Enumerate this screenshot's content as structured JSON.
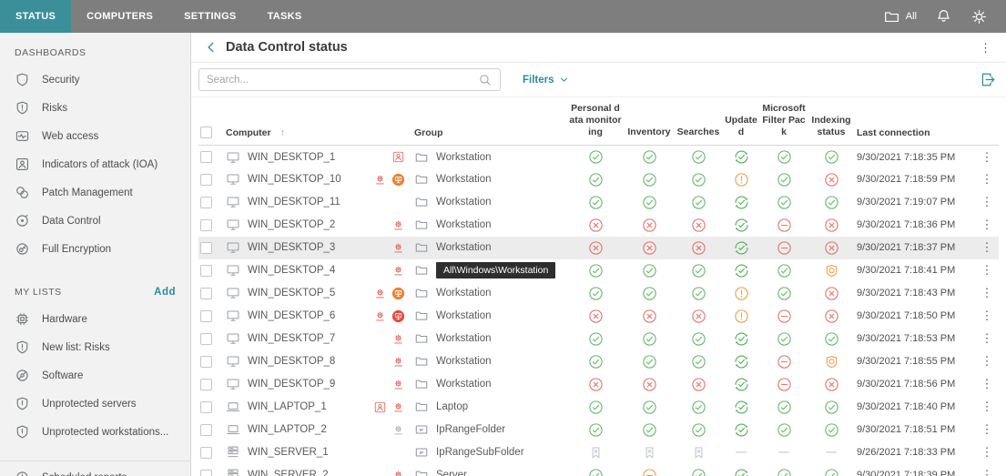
{
  "topbar": {
    "tabs": [
      {
        "label": "STATUS",
        "active": true
      },
      {
        "label": "COMPUTERS",
        "active": false
      },
      {
        "label": "SETTINGS",
        "active": false
      },
      {
        "label": "TASKS",
        "active": false
      }
    ],
    "scope_label": "All",
    "icons": [
      "folder-icon",
      "bell-icon",
      "gear-icon"
    ]
  },
  "sidebar": {
    "sections": [
      {
        "title": "DASHBOARDS",
        "items": [
          {
            "icon": "shield",
            "label": "Security"
          },
          {
            "icon": "shield-exclamation",
            "label": "Risks"
          },
          {
            "icon": "web-access",
            "label": "Web access"
          },
          {
            "icon": "person-square",
            "label": "Indicators of attack (IOA)"
          },
          {
            "icon": "knot",
            "label": "Patch Management"
          },
          {
            "icon": "orbit",
            "label": "Data Control"
          },
          {
            "icon": "encryption",
            "label": "Full Encryption"
          }
        ]
      },
      {
        "title": "MY LISTS",
        "action_label": "Add",
        "items": [
          {
            "icon": "chip",
            "label": "Hardware"
          },
          {
            "icon": "shield-exclamation",
            "label": "New list: Risks"
          },
          {
            "icon": "disc",
            "label": "Software"
          },
          {
            "icon": "shield-bar",
            "label": "Unprotected servers"
          },
          {
            "icon": "shield-bar",
            "label": "Unprotected workstations..."
          }
        ]
      },
      {
        "title": "",
        "divider": true,
        "items": [
          {
            "icon": "clock",
            "label": "Scheduled reports"
          }
        ]
      }
    ]
  },
  "main": {
    "title": "Data Control status",
    "search_placeholder": "Search...",
    "filters_label": "Filters",
    "table": {
      "columns": [
        "Computer",
        "Group",
        "Personal data monitoring",
        "Inventory",
        "Searches",
        "Updated",
        "Microsoft Filter Pack",
        "Indexing status",
        "Last connection"
      ],
      "sorted_column": "Computer",
      "sort_direction": "asc",
      "rows": [
        {
          "name": "WIN_DESKTOP_1",
          "device": "desktop",
          "badges": [
            "ioa"
          ],
          "group": "Workstation",
          "group_icon": "folder",
          "statuses": [
            "ok",
            "ok",
            "ok",
            "sync",
            "ok",
            "ok"
          ],
          "last_connection": "9/30/2021 7:18:35 PM"
        },
        {
          "name": "WIN_DESKTOP_10",
          "device": "desktop",
          "badges": [
            "gear",
            "isolated"
          ],
          "group": "Workstation",
          "group_icon": "folder",
          "statuses": [
            "ok",
            "ok",
            "ok",
            "warn",
            "ok",
            "error"
          ],
          "last_connection": "9/30/2021 7:18:59 PM"
        },
        {
          "name": "WIN_DESKTOP_11",
          "device": "desktop",
          "badges": [],
          "group": "Workstation",
          "group_icon": "folder",
          "statuses": [
            "ok",
            "ok",
            "ok",
            "sync",
            "ok",
            "ok"
          ],
          "last_connection": "9/30/2021 7:19:07 PM"
        },
        {
          "name": "WIN_DESKTOP_2",
          "device": "desktop",
          "badges": [
            "gear"
          ],
          "group": "Workstation",
          "group_icon": "folder",
          "statuses": [
            "error",
            "error",
            "error",
            "sync",
            "minus-red",
            "error"
          ],
          "last_connection": "9/30/2021 7:18:36 PM"
        },
        {
          "name": "WIN_DESKTOP_3",
          "device": "desktop",
          "badges": [
            "gear"
          ],
          "group": "Workstation",
          "group_icon": "folder",
          "highlighted": true,
          "statuses": [
            "error",
            "error",
            "error",
            "sync",
            "minus-red",
            "error"
          ],
          "last_connection": "9/30/2021 7:18:37 PM"
        },
        {
          "name": "WIN_DESKTOP_4",
          "device": "desktop",
          "badges": [
            "gear"
          ],
          "group": "Workstation",
          "group_icon": "folder",
          "tooltip": "All\\Windows\\Workstation",
          "statuses": [
            "ok",
            "ok",
            "ok",
            "sync",
            "ok",
            "indexing"
          ],
          "last_connection": "9/30/2021 7:18:41 PM"
        },
        {
          "name": "WIN_DESKTOP_5",
          "device": "desktop",
          "badges": [
            "gear",
            "isolated"
          ],
          "group": "Workstation",
          "group_icon": "folder",
          "statuses": [
            "ok",
            "ok",
            "ok",
            "warn",
            "ok",
            "error"
          ],
          "last_connection": "9/30/2021 7:18:43 PM"
        },
        {
          "name": "WIN_DESKTOP_6",
          "device": "desktop",
          "badges": [
            "gear",
            "isolating"
          ],
          "group": "Workstation",
          "group_icon": "folder",
          "statuses": [
            "error",
            "error",
            "error",
            "warn",
            "minus-red",
            "error"
          ],
          "last_connection": "9/30/2021 7:18:50 PM"
        },
        {
          "name": "WIN_DESKTOP_7",
          "device": "desktop",
          "badges": [
            "gear"
          ],
          "group": "Workstation",
          "group_icon": "folder",
          "statuses": [
            "ok",
            "ok",
            "ok",
            "sync",
            "ok",
            "ok"
          ],
          "last_connection": "9/30/2021 7:18:53 PM"
        },
        {
          "name": "WIN_DESKTOP_8",
          "device": "desktop",
          "badges": [
            "gear"
          ],
          "group": "Workstation",
          "group_icon": "folder",
          "statuses": [
            "ok",
            "ok",
            "ok",
            "sync",
            "minus-red",
            "indexing"
          ],
          "last_connection": "9/30/2021 7:18:55 PM"
        },
        {
          "name": "WIN_DESKTOP_9",
          "device": "desktop",
          "badges": [
            "gear"
          ],
          "group": "Workstation",
          "group_icon": "folder",
          "statuses": [
            "error",
            "error",
            "error",
            "sync",
            "minus-red",
            "error"
          ],
          "last_connection": "9/30/2021 7:18:56 PM"
        },
        {
          "name": "WIN_LAPTOP_1",
          "device": "laptop",
          "badges": [
            "ioa",
            "gear"
          ],
          "group": "Laptop",
          "group_icon": "folder",
          "statuses": [
            "ok",
            "ok",
            "ok",
            "sync",
            "ok",
            "ok"
          ],
          "last_connection": "9/30/2021 7:18:40 PM"
        },
        {
          "name": "WIN_LAPTOP_2",
          "device": "laptop",
          "badges": [
            "gear-gray"
          ],
          "group": "IpRangeFolder",
          "group_icon": "ip-folder",
          "statuses": [
            "ok",
            "ok",
            "ok",
            "sync",
            "ok",
            "ok"
          ],
          "last_connection": "9/30/2021 7:18:51 PM"
        },
        {
          "name": "WIN_SERVER_1",
          "device": "server",
          "badges": [],
          "group": "IpRangeSubFolder",
          "group_icon": "ip-folder",
          "statuses": [
            "nolicense",
            "nolicense",
            "nolicense",
            "none",
            "none",
            "none"
          ],
          "last_connection": "9/26/2021 7:18:33 PM"
        },
        {
          "name": "WIN_SERVER_2",
          "device": "server",
          "badges": [
            "gear"
          ],
          "group": "Server",
          "group_icon": "folder",
          "statuses": [
            "ok",
            "minus-orange",
            "ok",
            "sync",
            "ok",
            "ok"
          ],
          "last_connection": "9/30/2021 7:18:39 PM"
        }
      ]
    }
  },
  "colors": {
    "topbar_bg": "#7e7e7e",
    "active_tab": "#3a8f99",
    "accent_teal": "#2b8c9b",
    "status_ok_green": "#66b96a",
    "status_error_red": "#e0746b",
    "status_warn_orange": "#eda14c",
    "badge_red": "#dc6054",
    "isolated_orange": "#f0802f",
    "row_highlight": "#ececec"
  }
}
